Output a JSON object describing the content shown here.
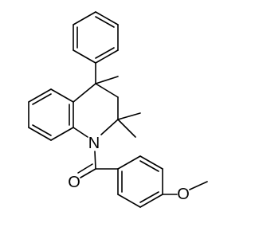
{
  "atoms": [
    {
      "label": "N"
    },
    {
      "label": "O"
    },
    {
      "label": "O"
    }
  ]
}
